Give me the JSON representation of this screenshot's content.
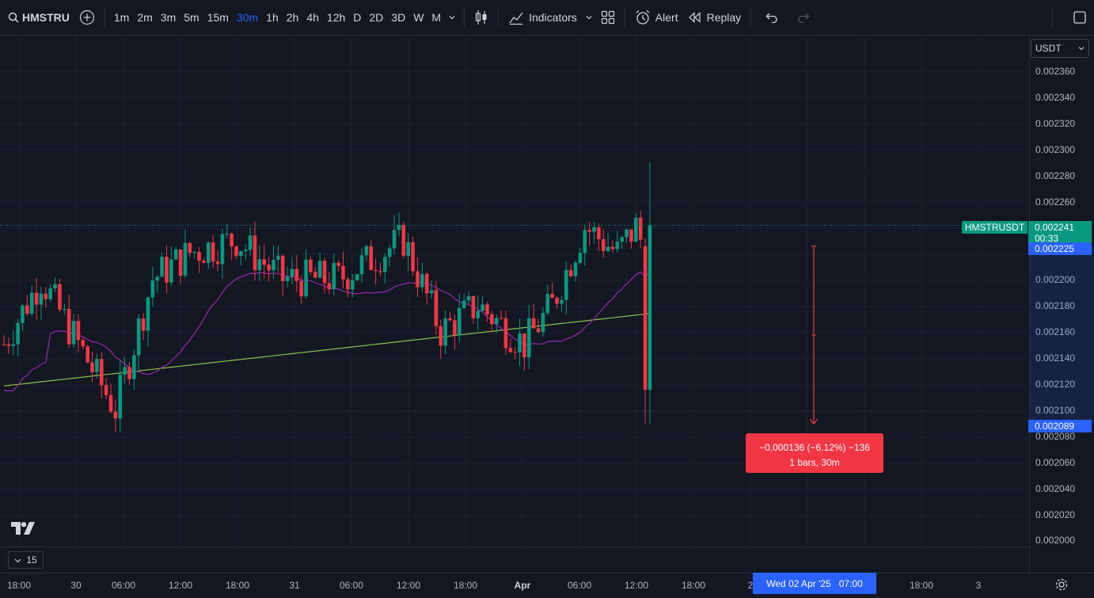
{
  "toolbar": {
    "symbol": "HMSTRU",
    "timeframes": [
      "1m",
      "2m",
      "3m",
      "5m",
      "15m",
      "30m",
      "1h",
      "2h",
      "4h",
      "12h",
      "D",
      "2D",
      "3D",
      "W",
      "M"
    ],
    "active_timeframe": "30m",
    "indicators_label": "Indicators",
    "alert_label": "Alert",
    "replay_label": "Replay"
  },
  "currency": "USDT",
  "price_axis": {
    "labels": [
      "0.002360",
      "0.002340",
      "0.002320",
      "0.002300",
      "0.002280",
      "0.002260",
      "0.002200",
      "0.002180",
      "0.002160",
      "0.002140",
      "0.002120",
      "0.002100",
      "0.002080",
      "0.002060",
      "0.002040",
      "0.002020",
      "0.002000"
    ],
    "current_price": "0.002241",
    "countdown": "00:33",
    "measure_top": "0.002225",
    "measure_bottom": "0.002089"
  },
  "symbol_tag": "HMSTRUSDT",
  "measure": {
    "line1": "−0.000136 (−6.12%) −136",
    "line2": "1 bars, 30m"
  },
  "interval_box": "15",
  "time_axis": {
    "labels": [
      "18:00",
      "30",
      "06:00",
      "12:00",
      "18:00",
      "31",
      "06:00",
      "12:00",
      "18:00",
      "Apr",
      "06:00",
      "12:00",
      "18:00",
      "2",
      "18:00",
      "3"
    ],
    "crosshair": "Wed 02 Apr '25   07:00"
  },
  "colors": {
    "up": "#089981",
    "down": "#f23645",
    "accent": "#2962ff",
    "ma_fast": "#9c27b0",
    "ma_slow": "#8bc34a"
  }
}
